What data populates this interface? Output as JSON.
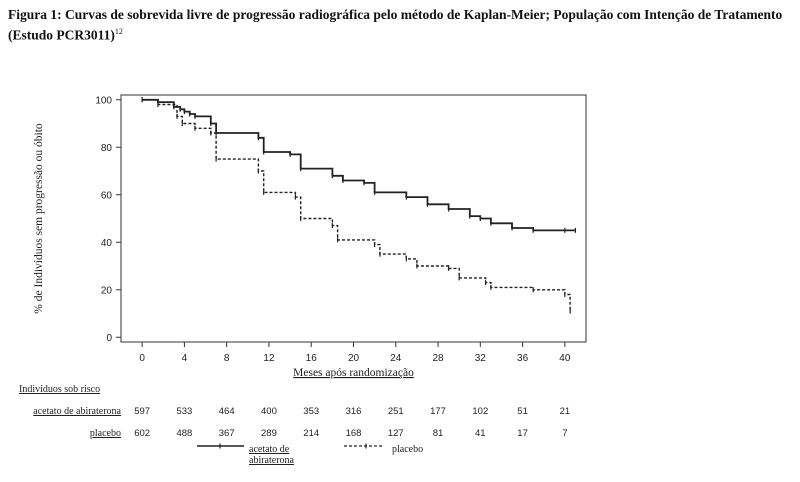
{
  "title": {
    "text": "Figura 1: Curvas de sobrevida livre de progressão radiográfica pelo método de Kaplan-Meier; População com Intenção de Tratamento (Estudo PCR3011)",
    "superscript": "12"
  },
  "chart_data": {
    "type": "line",
    "xlabel": "Meses após randomização",
    "ylabel": "% de Indivíduos sem progressão ou óbito",
    "xlim": [
      -2,
      42
    ],
    "ylim": [
      -2,
      102
    ],
    "xticks": [
      0,
      4,
      8,
      12,
      16,
      20,
      24,
      28,
      32,
      36,
      40
    ],
    "yticks": [
      0,
      20,
      40,
      60,
      80,
      100
    ],
    "series": [
      {
        "name": "acetato de abiraterona",
        "style": "solid",
        "color": "#222222",
        "x": [
          0,
          1.5,
          3,
          3.6,
          4,
          4.5,
          5,
          6.5,
          7,
          11,
          11.5,
          14,
          15,
          18,
          19,
          21,
          22,
          25,
          27,
          29,
          31,
          32,
          33,
          35,
          37,
          40,
          41
        ],
        "y": [
          100,
          99,
          97,
          96,
          95,
          94,
          93,
          90,
          86,
          84,
          78,
          77,
          71,
          68,
          66,
          65,
          61,
          59,
          56,
          54,
          51,
          50,
          48,
          46,
          45,
          45,
          45
        ]
      },
      {
        "name": "placebo",
        "style": "dashed",
        "color": "#222222",
        "x": [
          0,
          1.5,
          3.3,
          3.8,
          5,
          6.5,
          7,
          11,
          11.5,
          14.5,
          15,
          18,
          18.5,
          22,
          22.5,
          25,
          26,
          29,
          30,
          32.5,
          33,
          37,
          40,
          40.5
        ],
        "y": [
          100,
          98,
          93,
          90,
          88,
          86,
          75,
          70,
          61,
          59,
          50,
          47,
          41,
          39,
          35,
          33,
          30,
          29,
          25,
          23,
          21,
          20,
          18,
          11
        ]
      }
    ]
  },
  "risk_table": {
    "header": "Indivíduos sob risco",
    "rows": [
      {
        "label": "acetato de abiraterona",
        "values": [
          "597",
          "533",
          "464",
          "400",
          "353",
          "316",
          "251",
          "177",
          "102",
          "51",
          "21"
        ]
      },
      {
        "label": "placebo",
        "values": [
          "602",
          "488",
          "367",
          "289",
          "214",
          "168",
          "127",
          "81",
          "41",
          "17",
          "7"
        ]
      }
    ]
  },
  "legend": {
    "items": [
      "acetato de abiraterona",
      "placebo"
    ]
  }
}
